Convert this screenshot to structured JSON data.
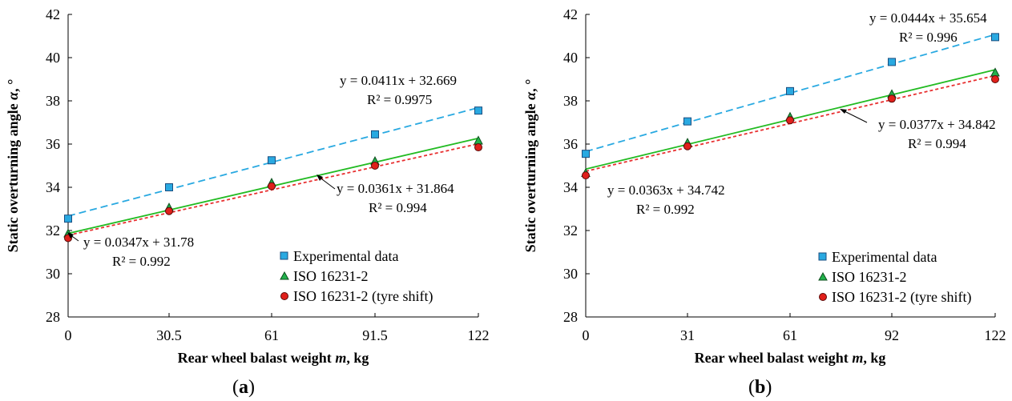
{
  "chart_data": [
    {
      "type": "scatter",
      "panel_label_open": "(",
      "panel_label_letter": "a",
      "panel_label_close": ")",
      "ylabel_main": "Static overturning angle ",
      "ylabel_symbol": "α",
      "ylabel_unit": ", °",
      "xlabel_main": "Rear wheel balast weight ",
      "xlabel_symbol": "m",
      "xlabel_unit": ", kg",
      "ylim": [
        28,
        42
      ],
      "yticks": [
        "28",
        "30",
        "32",
        "34",
        "36",
        "38",
        "40",
        "42"
      ],
      "x": [
        0,
        30.5,
        61,
        91.5,
        122
      ],
      "xtick_labels": [
        "0",
        "30.5",
        "61",
        "91.5",
        "122"
      ],
      "series": [
        {
          "name": "Experimental data",
          "marker": "square",
          "color": "#29a9e1",
          "line_color": "#29a9e1",
          "y": [
            32.55,
            34.0,
            35.25,
            36.45,
            37.55
          ],
          "fit": {
            "slope": 0.0411,
            "intercept": 32.669
          },
          "eq": "y = 0.0411x + 32.669",
          "r2": "R² = 0.9975"
        },
        {
          "name": "ISO 16231-2",
          "marker": "triangle",
          "color": "#22b14c",
          "line_color": "#22bb22",
          "y": [
            31.85,
            33.05,
            34.2,
            35.2,
            36.15
          ],
          "fit": {
            "slope": 0.0361,
            "intercept": 31.864
          },
          "eq": "y = 0.0361x + 31.864",
          "r2": "R² = 0.994"
        },
        {
          "name": "ISO 16231-2 (tyre shift)",
          "marker": "circle",
          "color": "#e0201b",
          "line_color": "#e83030",
          "y": [
            31.65,
            32.9,
            34.05,
            35.0,
            35.85
          ],
          "fit": {
            "slope": 0.0347,
            "intercept": 31.78
          },
          "eq": "y = 0.0347x + 31.78",
          "r2": "R² = 0.992"
        }
      ]
    },
    {
      "type": "scatter",
      "panel_label_open": "(",
      "panel_label_letter": "b",
      "panel_label_close": ")",
      "ylabel_main": "Static overturning angle ",
      "ylabel_symbol": "α",
      "ylabel_unit": ", °",
      "xlabel_main": "Rear wheel balast weight ",
      "xlabel_symbol": "m",
      "xlabel_unit": ", kg",
      "ylim": [
        28,
        42
      ],
      "yticks": [
        "28",
        "30",
        "32",
        "34",
        "36",
        "38",
        "40",
        "42"
      ],
      "x": [
        0,
        31,
        61,
        92,
        122
      ],
      "xtick_labels": [
        "0",
        "31",
        "61",
        "92",
        "122"
      ],
      "series": [
        {
          "name": "Experimental data",
          "marker": "square",
          "color": "#29a9e1",
          "line_color": "#29a9e1",
          "y": [
            35.55,
            37.05,
            38.45,
            39.8,
            40.95
          ],
          "fit": {
            "slope": 0.0444,
            "intercept": 35.654
          },
          "eq": "y = 0.0444x + 35.654",
          "r2": "R² = 0.996"
        },
        {
          "name": "ISO 16231-2",
          "marker": "triangle",
          "color": "#22b14c",
          "line_color": "#22bb22",
          "y": [
            34.65,
            36.05,
            37.25,
            38.3,
            39.3
          ],
          "fit": {
            "slope": 0.0377,
            "intercept": 34.842
          },
          "eq": "y = 0.0377x + 34.842",
          "r2": "R² = 0.994"
        },
        {
          "name": "ISO 16231-2 (tyre shift)",
          "marker": "circle",
          "color": "#e0201b",
          "line_color": "#e83030",
          "y": [
            34.55,
            35.9,
            37.1,
            38.1,
            39.0
          ],
          "fit": {
            "slope": 0.0363,
            "intercept": 34.742
          },
          "eq": "y = 0.0363x + 34.742",
          "r2": "R² = 0.992"
        }
      ]
    }
  ]
}
